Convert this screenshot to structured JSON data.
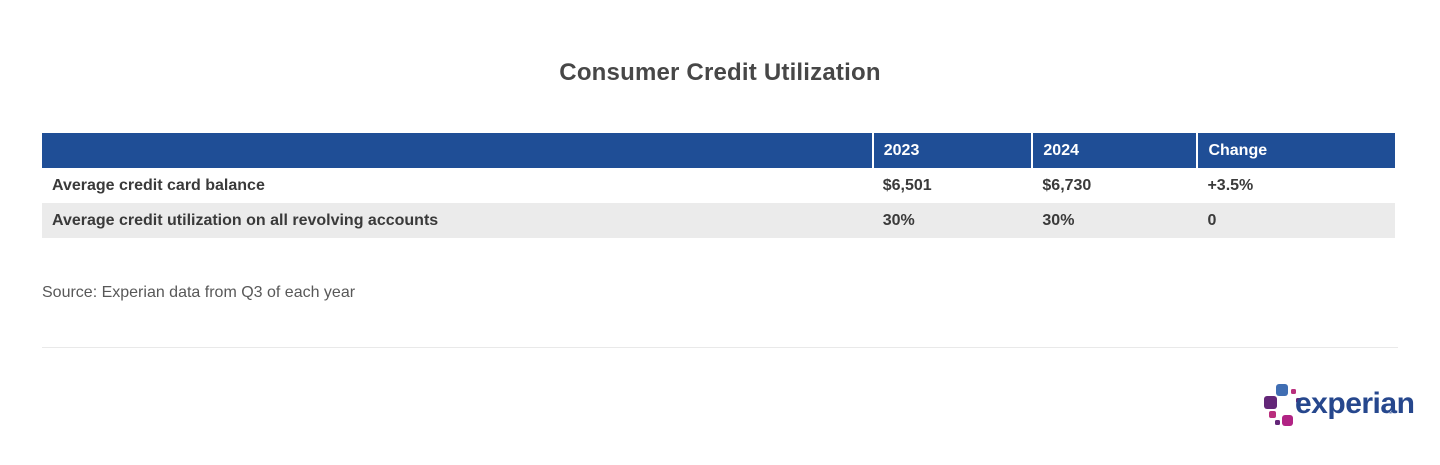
{
  "title": "Consumer Credit Utilization",
  "chart_data": {
    "type": "table",
    "title": "Consumer Credit Utilization",
    "columns": [
      "",
      "2023",
      "2024",
      "Change"
    ],
    "rows": [
      [
        "Average credit card balance",
        "$6,501",
        "$6,730",
        "+3.5%"
      ],
      [
        "Average credit utilization on all revolving accounts",
        "30%",
        "30%",
        "0"
      ]
    ],
    "source": "Source: Experian data from Q3 of each year"
  },
  "table": {
    "header": {
      "label": "",
      "col_2023": "2023",
      "col_2024": "2024",
      "col_change": "Change"
    },
    "rows": [
      {
        "label": "Average credit card balance",
        "y2023": "$6,501",
        "y2024": "$6,730",
        "change": "+3.5%"
      },
      {
        "label": "Average credit utilization on all revolving accounts",
        "y2023": "30%",
        "y2024": "30%",
        "change": "0"
      }
    ]
  },
  "source": "Source: Experian data from Q3 of each year",
  "logo": {
    "wordmark": "experian",
    "trademark": "™"
  },
  "colors": {
    "header_background": "#1f4e96",
    "header_text": "#ffffff",
    "row_alternate": "#ebebeb",
    "body_text": "#3a3a3a",
    "source_text": "#585858",
    "divider": "#e9e9e9",
    "logo_wordmark": "#26478d",
    "logo_blue": "#406eb3",
    "logo_purple": "#632678",
    "logo_magenta": "#ba2f7d"
  }
}
